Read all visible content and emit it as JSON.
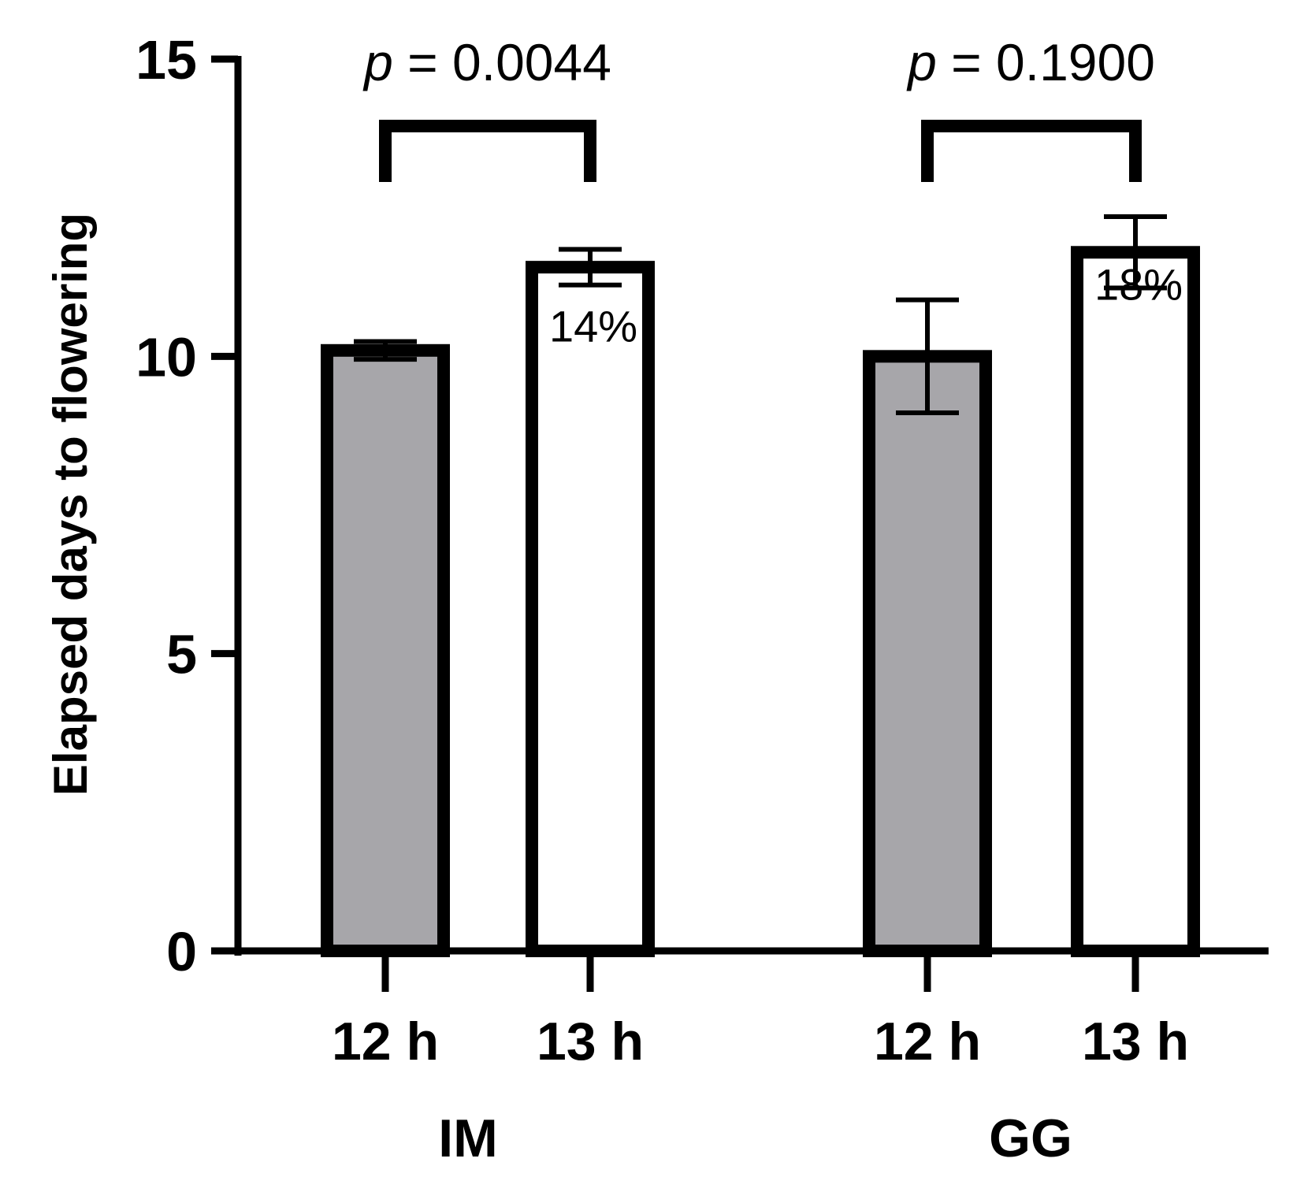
{
  "chart_data": {
    "type": "bar",
    "xlabel": "",
    "ylabel": "Elapsed days to flowering",
    "ylim": [
      0,
      15
    ],
    "yticks": [
      "0",
      "5",
      "10",
      "15"
    ],
    "ytick_values": [
      0,
      5,
      10,
      15
    ],
    "grid": false,
    "groups": [
      {
        "name": "IM",
        "p_prefix": "p",
        "p_text": " = 0.0044",
        "bars": [
          {
            "category": "12 h",
            "value": 10.1,
            "error": 0.15,
            "fill": "#a7a6aa",
            "annotation": ""
          },
          {
            "category": "13 h",
            "value": 11.5,
            "error": 0.3,
            "fill": "#ffffff",
            "annotation": "14%"
          }
        ]
      },
      {
        "name": "GG",
        "p_prefix": "p",
        "p_text": " = 0.1900",
        "bars": [
          {
            "category": "12 h",
            "value": 10.0,
            "error": 0.95,
            "fill": "#a7a6aa",
            "annotation": ""
          },
          {
            "category": "13 h",
            "value": 11.75,
            "error": 0.6,
            "fill": "#ffffff",
            "annotation": "18%"
          }
        ]
      }
    ]
  },
  "colors": {
    "axis": "#000000",
    "bar_filled": "#a7a6aa",
    "bar_open": "#ffffff"
  }
}
